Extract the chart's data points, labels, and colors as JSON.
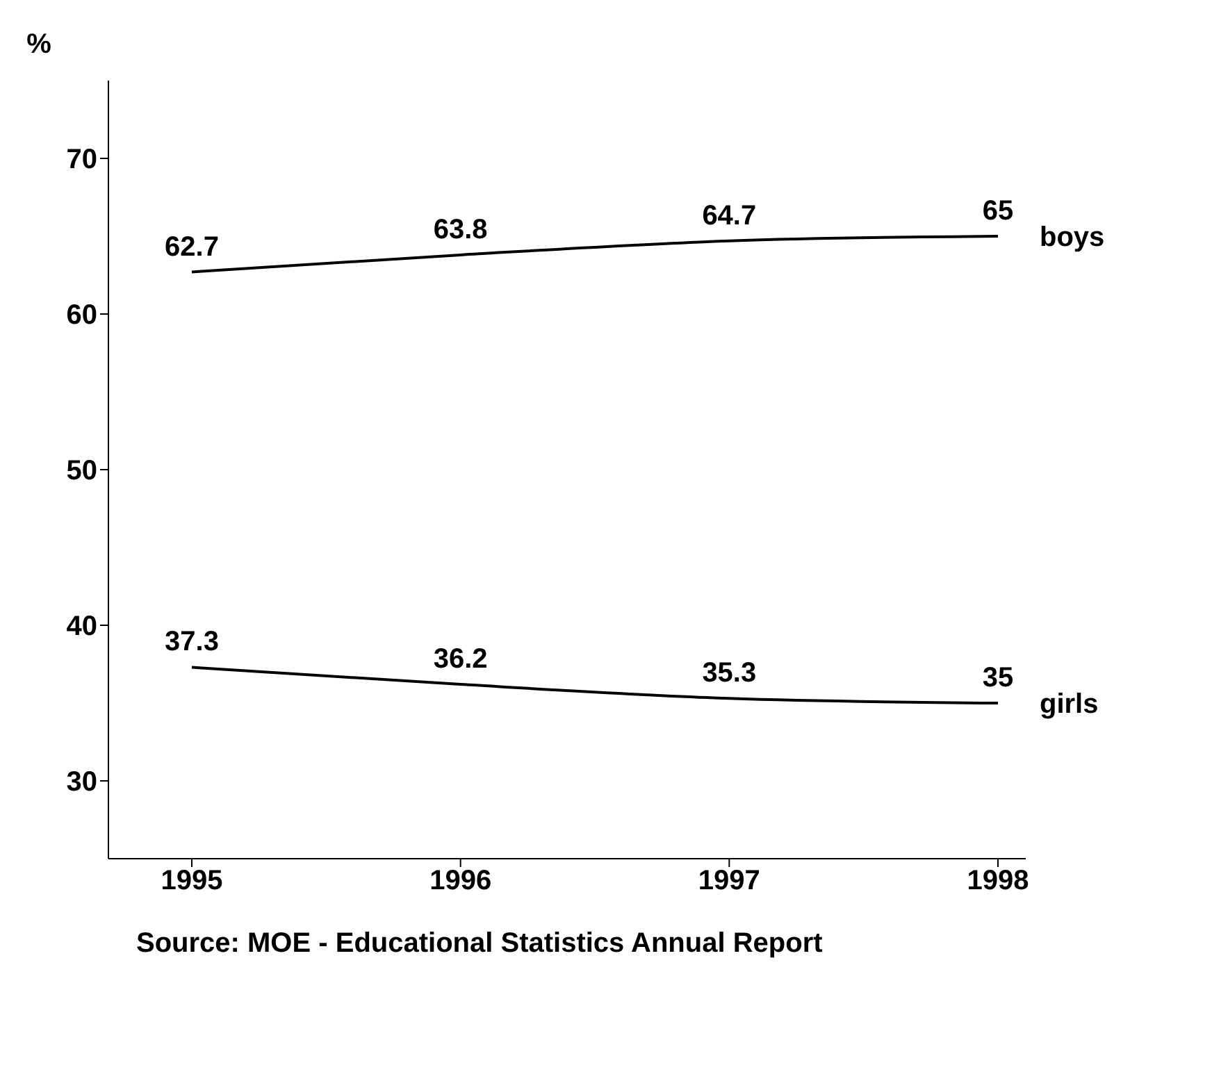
{
  "chart_data": {
    "type": "line",
    "categories": [
      "1995",
      "1996",
      "1997",
      "1998"
    ],
    "ylabel": "%",
    "ylim": [
      25,
      75
    ],
    "yticks": [
      30,
      40,
      50,
      60,
      70
    ],
    "data_labels": true,
    "marker": "none",
    "legend": false,
    "grid": false,
    "series": [
      {
        "name": "boys",
        "color": "#000000",
        "values": [
          62.7,
          63.8,
          64.7,
          65
        ]
      },
      {
        "name": "girls",
        "color": "#000000",
        "values": [
          37.3,
          36.2,
          35.3,
          35
        ]
      }
    ],
    "annotations": [
      "Source:  MOE - Educational Statistics Annual Report"
    ]
  }
}
